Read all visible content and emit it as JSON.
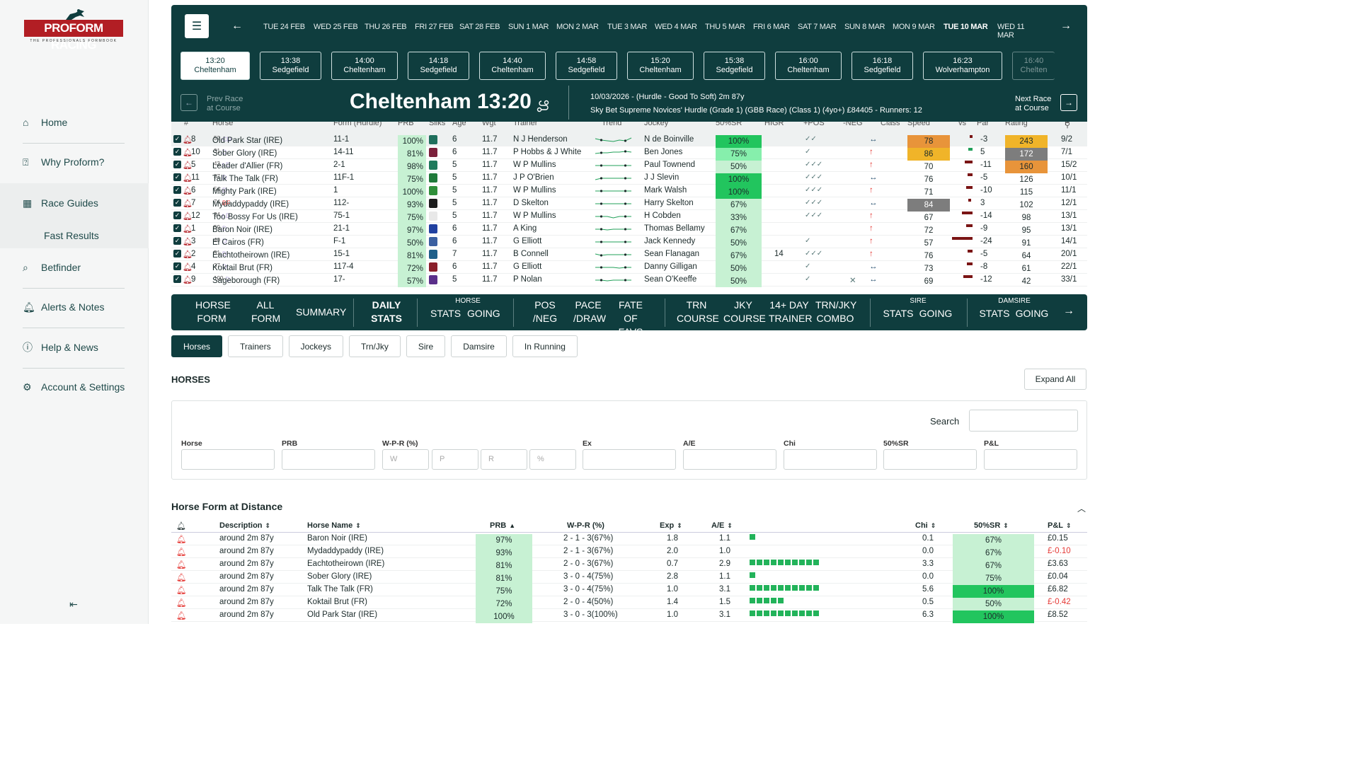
{
  "brand": {
    "name": "PROFORM RACING",
    "tagline": "THE PROFESSIONALS FORMBOOK"
  },
  "nav": {
    "home": "Home",
    "why": "Why Proform?",
    "guides": "Race Guides",
    "fast": "Fast Results",
    "betfinder": "Betfinder",
    "alerts": "Alerts & Notes",
    "help": "Help & News",
    "account": "Account & Settings"
  },
  "dates": [
    "TUE 24 FEB",
    "WED 25 FEB",
    "THU 26 FEB",
    "FRI 27 FEB",
    "SAT 28 FEB",
    "SUN 1 MAR",
    "MON 2 MAR",
    "TUE 3 MAR",
    "WED 4 MAR",
    "THU 5 MAR",
    "FRI 6 MAR",
    "SAT 7 MAR",
    "SUN 8 MAR",
    "MON 9 MAR",
    "TUE 10 MAR",
    "WED 11 MAR"
  ],
  "active_date": "TUE 10 MAR",
  "races": [
    {
      "time": "13:20",
      "course": "Cheltenham",
      "active": true
    },
    {
      "time": "13:38",
      "course": "Sedgefield"
    },
    {
      "time": "14:00",
      "course": "Cheltenham"
    },
    {
      "time": "14:18",
      "course": "Sedgefield"
    },
    {
      "time": "14:40",
      "course": "Cheltenham"
    },
    {
      "time": "14:58",
      "course": "Sedgefield"
    },
    {
      "time": "15:20",
      "course": "Cheltenham"
    },
    {
      "time": "15:38",
      "course": "Sedgefield"
    },
    {
      "time": "16:00",
      "course": "Cheltenham"
    },
    {
      "time": "16:18",
      "course": "Sedgefield"
    },
    {
      "time": "16:23",
      "course": "Wolverhampton"
    },
    {
      "time": "16:40",
      "course": "Chelten"
    }
  ],
  "race": {
    "prev": "Prev Race",
    "prev2": "at Course",
    "title": "Cheltenham 13:20",
    "info1": "10/03/2026 - (Hurdle - Good To Soft) 2m 87y",
    "info2": "Sky Bet Supreme Novices' Hurdle (Grade 1) (GBB Race) (Class 1) (4yo+) £84405 - Runners: 12",
    "next": "Next Race",
    "next2": "at Course"
  },
  "runner_headers": [
    "#",
    "Horse",
    "Form (Hurdle)",
    "PRB",
    "Silks",
    "Age",
    "Wgt",
    "Trainer",
    "Trend",
    "Jockey",
    "50%SR",
    "HIGR",
    "+POS",
    "-NEG",
    "Class",
    "Speed",
    "vs",
    "Par",
    "Rating",
    "P"
  ],
  "runners": [
    {
      "no": "8",
      "horse": "Old Park Star (IRE)",
      "sup": "52",
      "tag": "CD",
      "form": "11-1",
      "prb": "100%",
      "silk": "#1f6f5c",
      "age": "6",
      "wgt": "11.7",
      "trainer": "N J Henderson",
      "jockey": "N de Boinville",
      "sr": "100%",
      "src": "#22c55e",
      "higr": "",
      "pos": "✓✓",
      "neg": "",
      "cls": "↔",
      "speed": "78",
      "spc": "#e8943a",
      "par": "-3",
      "parw": 4,
      "rating": "243",
      "rtc": "#f0b429",
      "price": "9/2",
      "trend": [
        8,
        6,
        5,
        4,
        6,
        5,
        9
      ]
    },
    {
      "no": "10",
      "horse": "Sober Glory (IRE)",
      "sup": "31",
      "tag": "D",
      "form": "14-11",
      "prb": "81%",
      "silk": "#7a1f3a",
      "age": "6",
      "wgt": "11.7",
      "trainer": "P Hobbs & J White",
      "jockey": "Ben Jones",
      "sr": "75%",
      "src": "#86efac",
      "higr": "",
      "pos": "✓",
      "neg": "",
      "cls": "↑",
      "speed": "86",
      "spc": "#f0b429",
      "par": "5",
      "parw": 5,
      "parc": "#22a05a",
      "rating": "172",
      "rtc": "#7d7d7d",
      "price": "7/1",
      "trend": [
        5,
        6,
        6,
        7,
        7,
        8,
        7
      ]
    },
    {
      "no": "5",
      "horse": "Leader d'Allier (FR)",
      "sup": "43",
      "tag": "t D",
      "form": "2-1",
      "prb": "98%",
      "silk": "#1f7a5c",
      "age": "5",
      "wgt": "11.7",
      "trainer": "W P Mullins",
      "jockey": "Paul Townend",
      "sr": "50%",
      "src": "",
      "higr": "",
      "pos": "✓✓✓",
      "neg": "",
      "cls": "↑",
      "speed": "70",
      "spc": "",
      "par": "-11",
      "parw": 10,
      "rating": "160",
      "rtc": "#e8943a",
      "price": "15/2",
      "trend": [
        6,
        6,
        6,
        6,
        6,
        6,
        6
      ]
    },
    {
      "no": "11",
      "horse": "Talk The Talk (FR)",
      "sup": "37",
      "tag": "D",
      "form": "11F-1",
      "prb": "75%",
      "silk": "#1f7a3a",
      "age": "5",
      "wgt": "11.7",
      "trainer": "J P O'Brien",
      "jockey": "J J Slevin",
      "sr": "100%",
      "src": "#22c55e",
      "higr": "",
      "pos": "✓✓✓",
      "neg": "",
      "cls": "↔",
      "speed": "76",
      "spc": "",
      "par": "-5",
      "parw": 6,
      "rating": "126",
      "rtc": "",
      "price": "10/1",
      "trend": [
        4,
        6,
        6,
        6,
        6,
        6,
        6
      ]
    },
    {
      "no": "6",
      "horse": "Mighty Park (IRE)",
      "sup": "54",
      "tag": "D",
      "form": "1",
      "prb": "100%",
      "silk": "#2f8f3a",
      "age": "5",
      "wgt": "11.7",
      "trainer": "W P Mullins",
      "jockey": "Mark Walsh",
      "sr": "100%",
      "src": "#22c55e",
      "higr": "",
      "pos": "✓✓✓",
      "neg": "",
      "cls": "↑",
      "speed": "71",
      "spc": "",
      "par": "-10",
      "parw": 8,
      "rating": "115",
      "rtc": "",
      "price": "11/1",
      "trend": [
        6,
        6,
        6,
        6,
        6,
        6,
        6
      ]
    },
    {
      "no": "7",
      "horse": "Mydaddypaddy (IRE)",
      "sup": "74",
      "tag": "BF",
      "form": "112-",
      "prb": "93%",
      "silk": "#1c1c1c",
      "age": "5",
      "wgt": "11.7",
      "trainer": "D Skelton",
      "jockey": "Harry Skelton",
      "sr": "67%",
      "src": "#c7f1d3",
      "higr": "",
      "pos": "✓✓✓",
      "neg": "",
      "cls": "↔",
      "speed": "84",
      "spc": "#7d7d7d",
      "par": "3",
      "parw": 4,
      "parc": "#7a1414",
      "rating": "102",
      "rtc": "",
      "price": "12/1",
      "trend": [
        6,
        6,
        6,
        6,
        6,
        6,
        6
      ]
    },
    {
      "no": "12",
      "horse": "Too Bossy For Us (IRE)",
      "sup": "34",
      "tag": "t D",
      "form": "75-1",
      "prb": "75%",
      "silk": "#e8e8e8",
      "age": "5",
      "wgt": "11.7",
      "trainer": "W P Mullins",
      "jockey": "H Cobden",
      "sr": "33%",
      "src": "",
      "higr": "",
      "pos": "✓✓✓",
      "neg": "",
      "cls": "↑",
      "speed": "67",
      "spc": "",
      "par": "-14",
      "parw": 14,
      "rating": "98",
      "rtc": "",
      "price": "13/1",
      "trend": [
        6,
        6,
        6,
        4,
        6,
        6,
        6
      ]
    },
    {
      "no": "1",
      "horse": "Baron Noir (IRE)",
      "sup": "59",
      "tag": "D",
      "form": "21-1",
      "prb": "97%",
      "silk": "#2040a0",
      "age": "6",
      "wgt": "11.7",
      "trainer": "A King",
      "jockey": "Thomas Bellamy",
      "sr": "67%",
      "src": "#c7f1d3",
      "higr": "",
      "pos": "",
      "neg": "",
      "cls": "↑",
      "speed": "72",
      "spc": "",
      "par": "-9",
      "parw": 8,
      "rating": "95",
      "rtc": "",
      "price": "13/1",
      "trend": [
        6,
        6,
        5,
        6,
        6,
        6,
        6
      ]
    },
    {
      "no": "3",
      "horse": "El Cairos (FR)",
      "sup": "40",
      "tag": "D",
      "form": "F-1",
      "prb": "50%",
      "silk": "#3a5fa0",
      "age": "6",
      "wgt": "11.7",
      "trainer": "G Elliott",
      "jockey": "Jack Kennedy",
      "sr": "50%",
      "src": "",
      "higr": "",
      "pos": "✓",
      "neg": "",
      "cls": "↑",
      "speed": "57",
      "spc": "",
      "par": "-24",
      "parw": 26,
      "rating": "91",
      "rtc": "",
      "price": "14/1",
      "trend": [
        6,
        6,
        6,
        6,
        6,
        6,
        6
      ]
    },
    {
      "no": "2",
      "horse": "Eachtotheirown (IRE)",
      "sup": "51",
      "tag": "D",
      "form": "15-1",
      "prb": "81%",
      "silk": "#1f5f8a",
      "age": "7",
      "wgt": "11.7",
      "trainer": "B Connell",
      "jockey": "Sean Flanagan",
      "sr": "67%",
      "src": "#c7f1d3",
      "higr": "14",
      "pos": "✓✓✓",
      "neg": "",
      "cls": "↑",
      "speed": "76",
      "spc": "",
      "par": "-5",
      "parw": 6,
      "rating": "64",
      "rtc": "",
      "price": "20/1",
      "trend": [
        7,
        5,
        6,
        6,
        6,
        6,
        6
      ]
    },
    {
      "no": "4",
      "horse": "Koktail Brut (FR)",
      "sup": "37",
      "tag": "D",
      "form": "117-4",
      "prb": "72%",
      "silk": "#8a1f2a",
      "age": "6",
      "wgt": "11.7",
      "trainer": "G Elliott",
      "jockey": "Danny Gilligan",
      "sr": "50%",
      "src": "",
      "higr": "",
      "pos": "✓",
      "neg": "",
      "cls": "↔",
      "speed": "73",
      "spc": "",
      "par": "-8",
      "parw": 7,
      "rating": "61",
      "rtc": "",
      "price": "22/1",
      "trend": [
        6,
        6,
        6,
        6,
        5,
        6,
        6
      ]
    },
    {
      "no": "9",
      "horse": "Sageborough (FR)",
      "sup": "100",
      "tag": "D",
      "form": "17-",
      "prb": "57%",
      "silk": "#5a2f8a",
      "age": "5",
      "wgt": "11.7",
      "trainer": "P Nolan",
      "jockey": "Sean O'Keeffe",
      "sr": "50%",
      "src": "",
      "higr": "",
      "pos": "✓",
      "neg": "✕",
      "cls": "↔",
      "speed": "69",
      "spc": "",
      "par": "-12",
      "parw": 12,
      "rating": "42",
      "rtc": "",
      "price": "33/1",
      "trend": [
        6,
        6,
        5,
        6,
        6,
        6,
        6
      ]
    }
  ],
  "tabs": {
    "horse_form": [
      "HORSE",
      "FORM"
    ],
    "all_form": [
      "ALL",
      "FORM"
    ],
    "summary": "SUMMARY",
    "daily": [
      "DAILY",
      "STATS"
    ],
    "horse_group": "HORSE",
    "stats": "STATS",
    "going": "GOING",
    "posneg": [
      "POS",
      "/NEG"
    ],
    "pace": [
      "PACE",
      "/DRAW"
    ],
    "fate": [
      "FATE OF",
      "FAVS"
    ],
    "trn": [
      "TRN",
      "COURSE"
    ],
    "jky": [
      "JKY",
      "COURSE"
    ],
    "day14": [
      "14+ DAY",
      "TRAINER"
    ],
    "trnjky": [
      "TRN/JKY",
      "COMBO"
    ],
    "sire_group": "SIRE",
    "dam_group": "DAMSIRE"
  },
  "subtabs": [
    "Horses",
    "Trainers",
    "Jockeys",
    "Trn/Jky",
    "Sire",
    "Damsire",
    "In Running"
  ],
  "horses_title": "HORSES",
  "expand_all": "Expand All",
  "filters": {
    "search": "Search",
    "labels": [
      "Horse",
      "PRB",
      "W-P-R (%)",
      "Ex",
      "A/E",
      "Chi",
      "50%SR",
      "P&L"
    ],
    "wpr_placeholders": [
      "W",
      "P",
      "R",
      "%"
    ]
  },
  "hfd": {
    "title": "Horse Form at Distance",
    "headers": [
      "Description",
      "Horse Name",
      "PRB",
      "W-P-R (%)",
      "Exp",
      "A/E",
      "Chi",
      "50%SR",
      "P&L"
    ],
    "rows": [
      {
        "desc": "around 2m 87y",
        "horse": "Baron Noir (IRE)",
        "prb": "97%",
        "wpr": "2 - 1 - 3(67%)",
        "exp": "1.8",
        "ae": "1.1",
        "bar": 1,
        "chi": "0.1",
        "sr": "67%",
        "full": false,
        "pl": "£0.15",
        "neg": false
      },
      {
        "desc": "around 2m 87y",
        "horse": "Mydaddypaddy (IRE)",
        "prb": "93%",
        "wpr": "2 - 1 - 3(67%)",
        "exp": "2.0",
        "ae": "1.0",
        "bar": 0,
        "chi": "0.0",
        "sr": "67%",
        "full": false,
        "pl": "£-0.10",
        "neg": true
      },
      {
        "desc": "around 2m 87y",
        "horse": "Eachtotheirown (IRE)",
        "prb": "81%",
        "wpr": "2 - 0 - 3(67%)",
        "exp": "0.7",
        "ae": "2.9",
        "bar": 10,
        "chi": "3.3",
        "sr": "67%",
        "full": false,
        "pl": "£3.63",
        "neg": false
      },
      {
        "desc": "around 2m 87y",
        "horse": "Sober Glory (IRE)",
        "prb": "81%",
        "wpr": "3 - 0 - 4(75%)",
        "exp": "2.8",
        "ae": "1.1",
        "bar": 1,
        "chi": "0.0",
        "sr": "75%",
        "full": false,
        "pl": "£0.04",
        "neg": false
      },
      {
        "desc": "around 2m 87y",
        "horse": "Talk The Talk (FR)",
        "prb": "75%",
        "wpr": "3 - 0 - 4(75%)",
        "exp": "1.0",
        "ae": "3.1",
        "bar": 10,
        "chi": "5.6",
        "sr": "100%",
        "full": true,
        "pl": "£6.82",
        "neg": false
      },
      {
        "desc": "around 2m 87y",
        "horse": "Koktail Brut (FR)",
        "prb": "72%",
        "wpr": "2 - 0 - 4(50%)",
        "exp": "1.4",
        "ae": "1.5",
        "bar": 5,
        "chi": "0.5",
        "sr": "50%",
        "full": false,
        "pl": "£-0.42",
        "neg": true
      },
      {
        "desc": "around 2m 87y",
        "horse": "Old Park Star (IRE)",
        "prb": "100%",
        "wpr": "3 - 0 - 3(100%)",
        "exp": "1.0",
        "ae": "3.1",
        "bar": 10,
        "chi": "6.3",
        "sr": "100%",
        "full": true,
        "pl": "£8.52",
        "neg": false
      }
    ]
  }
}
